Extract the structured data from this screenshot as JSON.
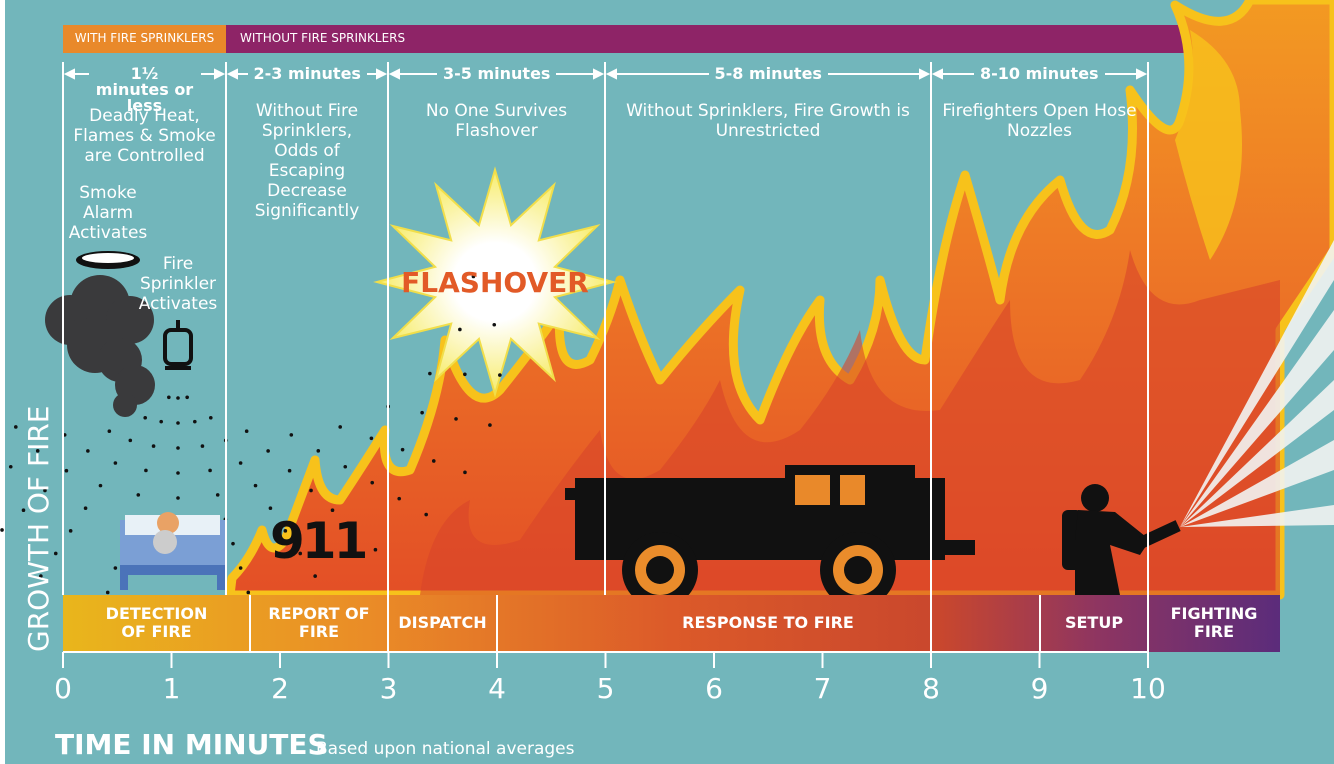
{
  "header": {
    "with_sprinklers": "WITH FIRE SPRINKLERS",
    "without_sprinklers": "WITHOUT FIRE SPRINKLERS"
  },
  "intervals": [
    {
      "duration": "1½ minutes or less",
      "description": "Deadly Heat, Flames & Smoke are Controlled"
    },
    {
      "duration": "2-3 minutes",
      "description": "Without Fire Sprinklers, Odds of Escaping Decrease Significantly"
    },
    {
      "duration": "3-5 minutes",
      "description": "No One Survives Flashover"
    },
    {
      "duration": "5-8 minutes",
      "description": "Without Sprinklers, Fire Growth is Unrestricted"
    },
    {
      "duration": "8-10 minutes",
      "description": "Firefighters Open Hose Nozzles"
    }
  ],
  "callouts": {
    "smoke_alarm": "Smoke Alarm Activates",
    "sprinkler": "Fire Sprinkler Activates",
    "flashover": "FLASHOVER",
    "call": "911"
  },
  "phases": [
    "DETECTION OF FIRE",
    "REPORT OF FIRE",
    "DISPATCH",
    "RESPONSE TO FIRE",
    "SETUP",
    "FIGHTING FIRE"
  ],
  "axis": {
    "y_label": "GROWTH OF FIRE",
    "x_label": "TIME IN MINUTES",
    "note": "Based upon national averages",
    "ticks": [
      0,
      1,
      2,
      3,
      4,
      5,
      6,
      7,
      8,
      9,
      10
    ]
  }
}
